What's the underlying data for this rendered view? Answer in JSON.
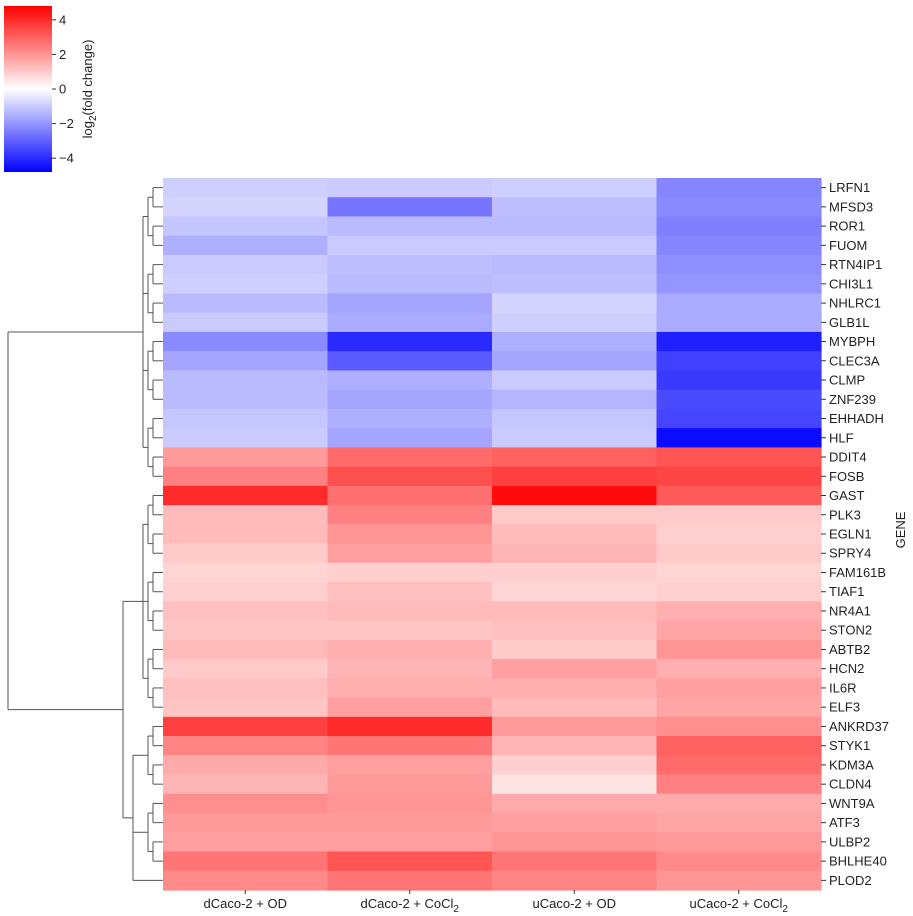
{
  "chart_data": {
    "type": "heatmap",
    "title": "",
    "ylabel": "GENE",
    "xlabel": "",
    "columns": [
      "dCaco-2 + OD",
      "dCaco-2 + CoCl",
      "uCaco-2 + OD",
      "uCaco-2 + CoCl"
    ],
    "column_subscripts": [
      "",
      "2",
      "",
      "2"
    ],
    "row_labels": [
      "LRFN1",
      "MFSD3",
      "ROR1",
      "FUOM",
      "RTN4IP1",
      "CHI3L1",
      "NHLRC1",
      "GLB1L",
      "MYBPH",
      "CLEC3A",
      "CLMP",
      "ZNF239",
      "EHHADH",
      "HLF",
      "DDIT4",
      "FOSB",
      "GAST",
      "PLK3",
      "EGLN1",
      "SPRY4",
      "FAM161B",
      "TIAF1",
      "NR4A1",
      "STON2",
      "ABTB2",
      "HCN2",
      "IL6R",
      "ELF3",
      "ANKRD37",
      "STYK1",
      "KDM3A",
      "CLDN4",
      "WNT9A",
      "ATF3",
      "ULBP2",
      "BHLHE40",
      "PLOD2"
    ],
    "values": [
      [
        -0.9,
        -1.0,
        -0.9,
        -2.3
      ],
      [
        -0.8,
        -2.6,
        -1.2,
        -2.2
      ],
      [
        -1.1,
        -1.3,
        -1.3,
        -2.4
      ],
      [
        -1.5,
        -1.0,
        -1.0,
        -2.3
      ],
      [
        -1.0,
        -1.2,
        -1.3,
        -2.1
      ],
      [
        -0.9,
        -1.3,
        -1.2,
        -2.0
      ],
      [
        -1.3,
        -1.7,
        -0.8,
        -1.6
      ],
      [
        -1.0,
        -1.6,
        -0.9,
        -1.6
      ],
      [
        -2.2,
        -4.0,
        -1.5,
        -4.2
      ],
      [
        -1.7,
        -3.1,
        -1.7,
        -3.6
      ],
      [
        -1.3,
        -1.5,
        -1.0,
        -3.7
      ],
      [
        -1.3,
        -1.7,
        -1.4,
        -3.4
      ],
      [
        -1.1,
        -1.5,
        -1.1,
        -3.5
      ],
      [
        -1.0,
        -1.7,
        -1.0,
        -4.6
      ],
      [
        1.9,
        2.8,
        3.0,
        3.2
      ],
      [
        2.4,
        3.3,
        3.6,
        3.5
      ],
      [
        4.0,
        2.7,
        4.6,
        3.1
      ],
      [
        1.3,
        2.4,
        1.0,
        1.0
      ],
      [
        1.3,
        2.0,
        1.3,
        0.9
      ],
      [
        1.0,
        1.8,
        1.4,
        1.0
      ],
      [
        0.8,
        0.9,
        0.9,
        0.8
      ],
      [
        0.9,
        1.2,
        0.8,
        0.9
      ],
      [
        1.2,
        1.3,
        1.3,
        1.5
      ],
      [
        1.1,
        1.1,
        1.2,
        1.7
      ],
      [
        1.3,
        1.5,
        1.0,
        2.0
      ],
      [
        1.0,
        1.4,
        1.8,
        1.5
      ],
      [
        1.2,
        1.5,
        1.5,
        1.8
      ],
      [
        1.1,
        1.8,
        1.3,
        1.7
      ],
      [
        3.6,
        4.0,
        1.9,
        2.1
      ],
      [
        2.3,
        2.6,
        1.4,
        3.0
      ],
      [
        1.6,
        1.8,
        0.9,
        2.8
      ],
      [
        1.4,
        1.9,
        0.5,
        2.4
      ],
      [
        2.1,
        2.0,
        1.6,
        1.6
      ],
      [
        1.9,
        1.9,
        1.8,
        1.7
      ],
      [
        1.8,
        1.8,
        2.0,
        1.9
      ],
      [
        2.6,
        3.2,
        2.6,
        2.2
      ],
      [
        2.2,
        2.6,
        2.3,
        2.0
      ]
    ],
    "colorbar": {
      "label_main": "log",
      "label_sub": "2",
      "label_rest": "(fold change)",
      "ticks": [
        4,
        2,
        0,
        -2,
        -4
      ],
      "tick_labels": [
        "4",
        "2",
        "0",
        "−2",
        "−4"
      ],
      "vmin": -4.8,
      "vmax": 4.8,
      "cmap": "bwr",
      "colors": {
        "low": "#0000ff",
        "mid": "#ffffff",
        "high": "#ff0000"
      }
    },
    "dendrogram": "row",
    "legend": "top-left"
  }
}
